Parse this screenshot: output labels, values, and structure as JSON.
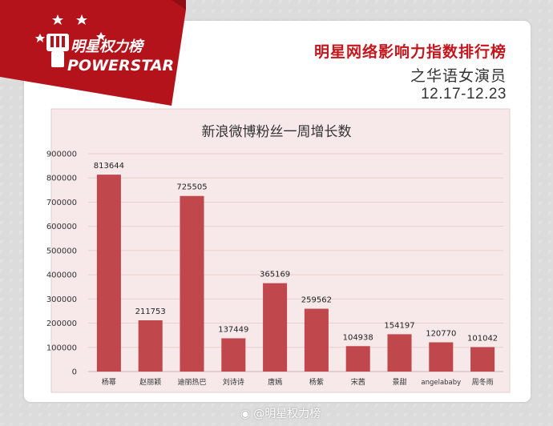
{
  "brand": {
    "logo_text": "明星权力榜",
    "logo_word": "POWERSTAR"
  },
  "header": {
    "title": "明星网络影响力指数排行榜",
    "subtitle": "之华语女演员",
    "date_range": "12.17-12.23"
  },
  "watermark": {
    "text": "@明星权力榜"
  },
  "colors": {
    "bar": "#c0474b",
    "title_red": "#c5161d",
    "plot_bg": "#f7e9e9",
    "grid": "#e9cfcf"
  },
  "chart_data": {
    "type": "bar",
    "title": "新浪微博粉丝一周增长数",
    "categories": [
      "杨幂",
      "赵丽颖",
      "迪丽热巴",
      "刘诗诗",
      "唐嫣",
      "杨紫",
      "宋茜",
      "景甜",
      "angelababy",
      "周冬雨"
    ],
    "values": [
      813644,
      211753,
      725505,
      137449,
      365169,
      259562,
      104938,
      154197,
      120770,
      101042
    ],
    "value_labels": [
      "813644",
      "211753",
      "725505",
      "137449",
      "365169",
      "259562",
      "104938",
      "154197",
      "120770",
      "101042"
    ],
    "ylim": [
      0,
      900000
    ],
    "yticks": [
      "0",
      "100000",
      "200000",
      "300000",
      "400000",
      "500000",
      "600000",
      "700000",
      "800000",
      "900000"
    ],
    "xlabel": "",
    "ylabel": "",
    "grid": true
  }
}
